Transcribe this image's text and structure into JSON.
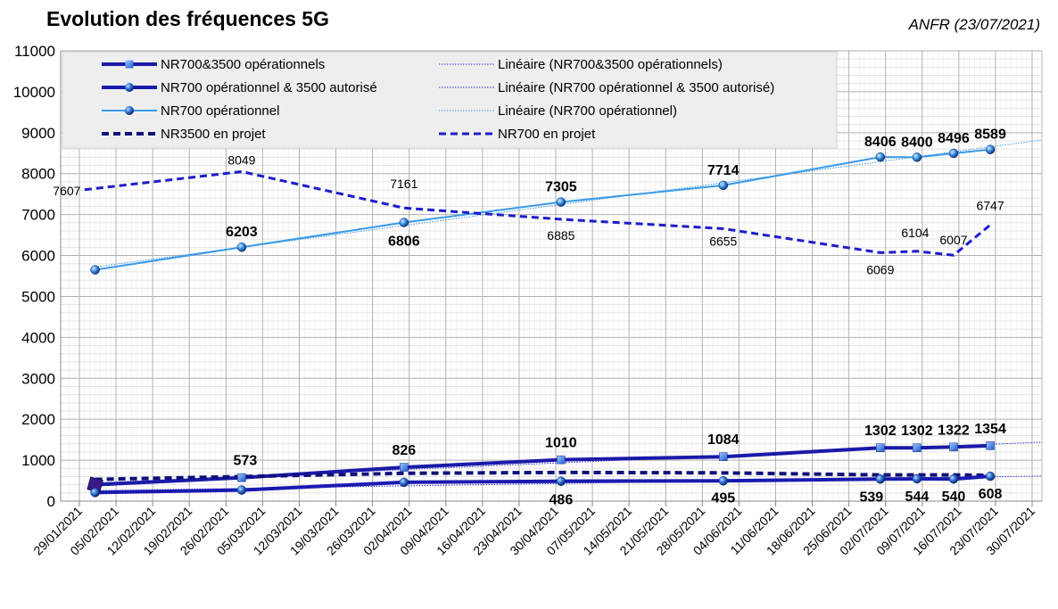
{
  "header": {
    "title": "Evolution des fréquences 5G",
    "source": "ANFR (23/07/2021)"
  },
  "chart_data": {
    "type": "line",
    "title": "Evolution des fréquences 5G",
    "xlabel": "",
    "ylabel": "",
    "ylim": [
      0,
      11000
    ],
    "yticks": [
      0,
      1000,
      2000,
      3000,
      4000,
      5000,
      6000,
      7000,
      8000,
      9000,
      10000,
      11000
    ],
    "xlim": [
      "2021-01-29",
      "2021-07-30"
    ],
    "xticks": [
      "29/01/2021",
      "05/02/2021",
      "12/02/2021",
      "19/02/2021",
      "26/02/2021",
      "05/03/2021",
      "12/03/2021",
      "19/03/2021",
      "26/03/2021",
      "02/04/2021",
      "09/04/2021",
      "16/04/2021",
      "23/04/2021",
      "30/04/2021",
      "07/05/2021",
      "14/05/2021",
      "21/05/2021",
      "28/05/2021",
      "04/06/2021",
      "11/06/2021",
      "18/06/2021",
      "25/06/2021",
      "02/07/2021",
      "09/07/2021",
      "16/07/2021",
      "23/07/2021",
      "30/07/2021"
    ],
    "grid": true,
    "legend_position": "top",
    "series": [
      {
        "name": "NR700 opérationnel",
        "color": "#3a9ae8",
        "style": "solid",
        "marker": "sphere",
        "x": [
          "2021-02-01",
          "2021-03-01",
          "2021-04-01",
          "2021-05-01",
          "2021-06-01",
          "2021-07-01",
          "2021-07-08",
          "2021-07-15",
          "2021-07-22"
        ],
        "values": [
          5650,
          6203,
          6806,
          7305,
          7714,
          8406,
          8400,
          8496,
          8589
        ],
        "labels": [
          "",
          "6203",
          "6806",
          "7305",
          "7714",
          "8406",
          "8400",
          "8496",
          "8589"
        ],
        "label_bold": true
      },
      {
        "name": "NR700 en projet",
        "color": "#1c1ccc",
        "style": "dashed",
        "marker": "none",
        "x": [
          "2021-01-30",
          "2021-03-01",
          "2021-04-01",
          "2021-05-01",
          "2021-06-01",
          "2021-07-01",
          "2021-07-08",
          "2021-07-15",
          "2021-07-22"
        ],
        "values": [
          7607,
          8049,
          7161,
          6885,
          6655,
          6069,
          6104,
          6007,
          6747
        ],
        "labels": [
          "7607",
          "8049",
          "7161",
          "6885",
          "6655",
          "6069",
          "6104",
          "6007",
          "6747"
        ],
        "label_bold": false
      },
      {
        "name": "NR700&3500 opérationnels",
        "color": "#1a1aa8",
        "style": "solid",
        "marker": "square",
        "x": [
          "2021-02-01",
          "2021-03-01",
          "2021-04-01",
          "2021-05-01",
          "2021-06-01",
          "2021-07-01",
          "2021-07-08",
          "2021-07-15",
          "2021-07-22"
        ],
        "values": [
          400,
          573,
          826,
          1010,
          1084,
          1302,
          1302,
          1322,
          1354
        ],
        "labels": [
          "",
          "573",
          "826",
          "1010",
          "1084",
          "1302",
          "1302",
          "1322",
          "1354"
        ],
        "label_bold": true
      },
      {
        "name": "NR3500 en projet",
        "color": "#10107a",
        "style": "dashed",
        "marker": "none",
        "x": [
          "2021-02-01",
          "2021-03-01",
          "2021-04-01",
          "2021-05-01",
          "2021-06-01",
          "2021-07-01",
          "2021-07-08",
          "2021-07-15",
          "2021-07-22"
        ],
        "values": [
          530,
          600,
          680,
          700,
          690,
          640,
          640,
          640,
          630
        ],
        "labels": [],
        "label_bold": false
      },
      {
        "name": "NR700 opérationnel & 3500 autorisé",
        "color": "#1a1ab0",
        "style": "solid",
        "marker": "sphere",
        "x": [
          "2021-02-01",
          "2021-03-01",
          "2021-04-01",
          "2021-05-01",
          "2021-06-01",
          "2021-07-01",
          "2021-07-08",
          "2021-07-15",
          "2021-07-22"
        ],
        "values": [
          210,
          270,
          460,
          486,
          495,
          539,
          544,
          540,
          608
        ],
        "labels": [
          "",
          "",
          "",
          "486",
          "495",
          "539",
          "544",
          "540",
          "608"
        ],
        "label_bold": true
      }
    ],
    "trendlines": [
      {
        "name": "Linéaire (NR700&3500 opérationnels)",
        "color": "#3030d0"
      },
      {
        "name": "Linéaire (NR700 opérationnel & 3500 autorisé)",
        "color": "#3030d0"
      },
      {
        "name": "Linéaire (NR700 opérationnel)",
        "color": "#3a9ae8"
      }
    ],
    "legend": [
      {
        "label": "NR700&3500 opérationnels",
        "color": "#1a1aa8",
        "style": "solid",
        "marker": "square",
        "width": 4
      },
      {
        "label": "Linéaire (NR700&3500 opérationnels)",
        "color": "#3030d0",
        "style": "dotted",
        "marker": "none",
        "width": 1
      },
      {
        "label": "NR700 opérationnel & 3500 autorisé",
        "color": "#1a1ab0",
        "style": "solid",
        "marker": "sphere",
        "width": 4
      },
      {
        "label": "Linéaire (NR700 opérationnel & 3500 autorisé)",
        "color": "#3030d0",
        "style": "dotted",
        "marker": "none",
        "width": 1
      },
      {
        "label": "NR700 opérationnel",
        "color": "#3a9ae8",
        "style": "solid",
        "marker": "sphere",
        "width": 2
      },
      {
        "label": "Linéaire (NR700 opérationnel)",
        "color": "#3a9ae8",
        "style": "dotted",
        "marker": "none",
        "width": 1
      },
      {
        "label": "NR3500 en projet",
        "color": "#10107a",
        "style": "dashed",
        "marker": "none",
        "width": 4
      },
      {
        "label": "NR700 en projet",
        "color": "#1c1ccc",
        "style": "dashed",
        "marker": "none",
        "width": 3
      }
    ]
  }
}
